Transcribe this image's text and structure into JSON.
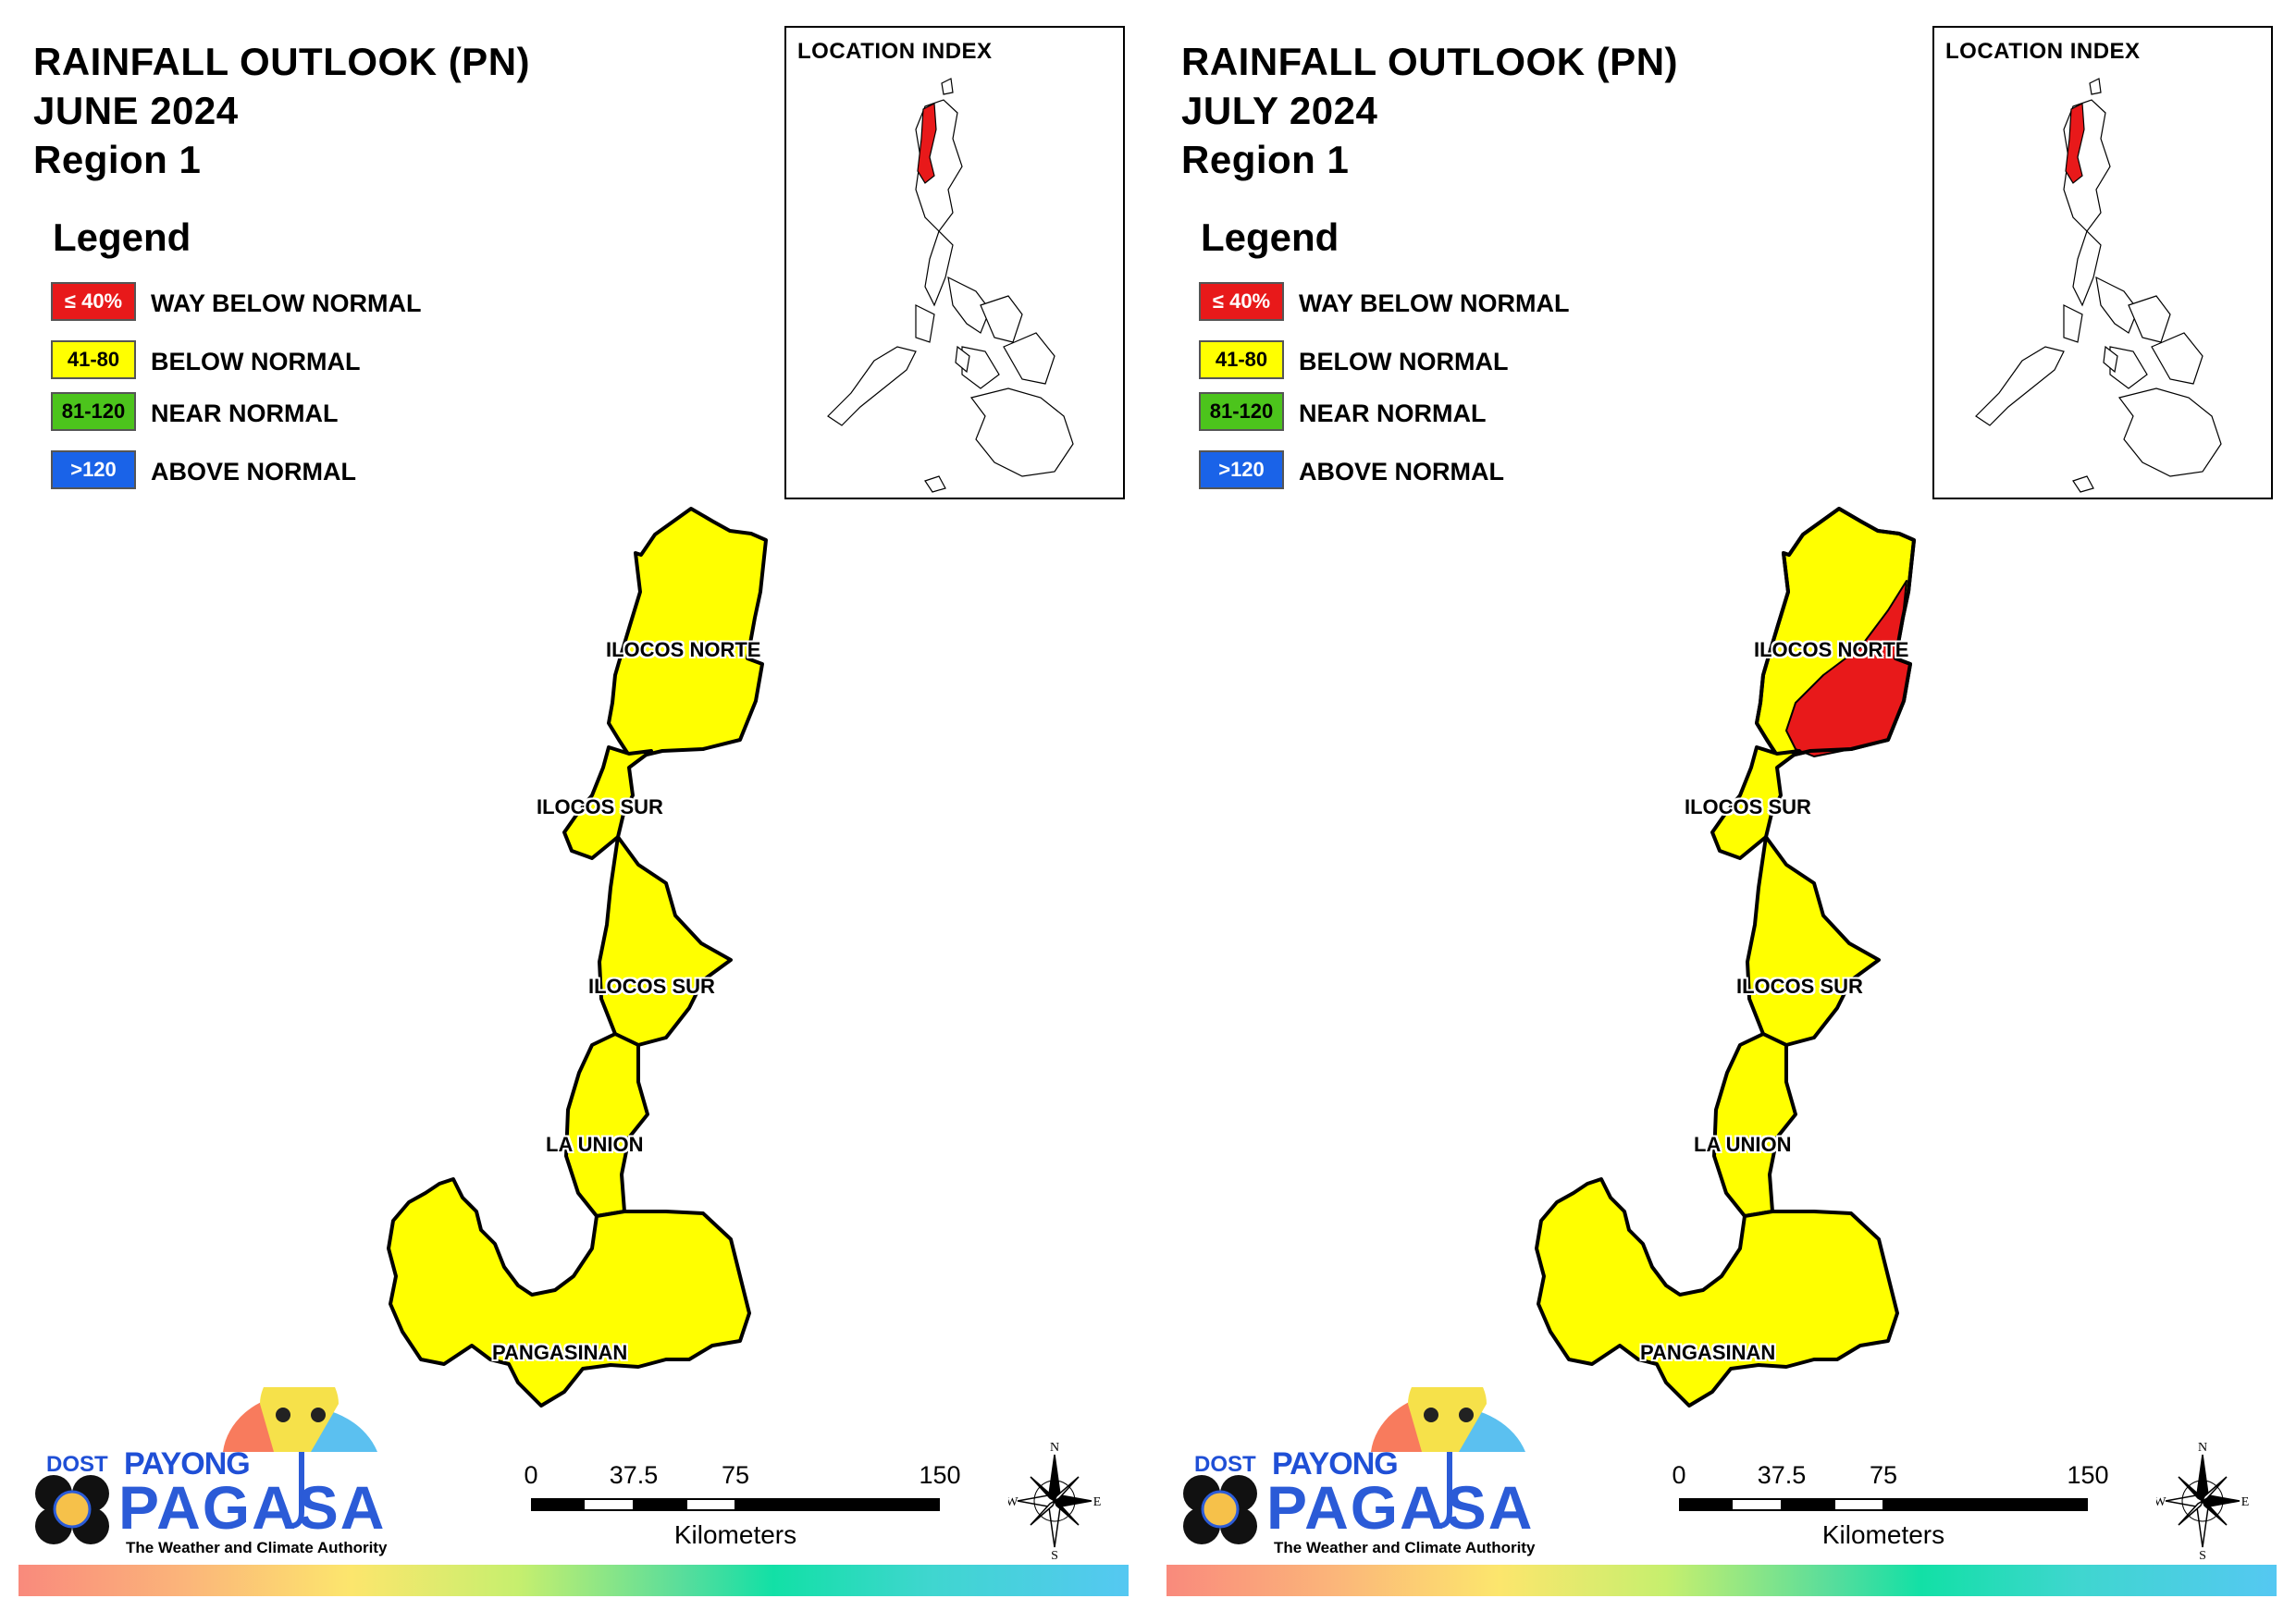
{
  "panels": [
    {
      "title_line1": "RAINFALL OUTLOOK (PN)",
      "title_line2": "JUNE 2024",
      "title_line3": "Region 1",
      "legend_title": "Legend",
      "location_index_title": "LOCATION INDEX",
      "provinces": [
        "ILOCOS NORTE",
        "ILOCOS SUR",
        "ILOCOS SUR",
        "LA UNION",
        "PANGASINAN"
      ],
      "categories_shown": [
        "BELOW NORMAL"
      ]
    },
    {
      "title_line1": "RAINFALL OUTLOOK (PN)",
      "title_line2": "JULY 2024",
      "title_line3": "Region 1",
      "legend_title": "Legend",
      "location_index_title": "LOCATION INDEX",
      "provinces": [
        "ILOCOS NORTE",
        "ILOCOS SUR",
        "ILOCOS SUR",
        "LA UNION",
        "PANGASINAN"
      ],
      "categories_shown": [
        "BELOW NORMAL",
        "WAY BELOW NORMAL"
      ]
    }
  ],
  "legend": [
    {
      "code": "≤ 40%",
      "label": "WAY BELOW NORMAL",
      "color": "#e8191a",
      "text_color": "#ffffff"
    },
    {
      "code": "41-80",
      "label": "BELOW NORMAL",
      "color": "#ffff00",
      "text_color": "#000000"
    },
    {
      "code": "81-120",
      "label": "NEAR NORMAL",
      "color": "#4cc41c",
      "text_color": "#000000"
    },
    {
      "code": ">120",
      "label": "ABOVE NORMAL",
      "color": "#1a63e8",
      "text_color": "#ffffff"
    }
  ],
  "scale_bar": {
    "ticks": [
      "0",
      "37.5",
      "75",
      "150"
    ],
    "units": "Kilometers"
  },
  "compass": {
    "n": "N",
    "s": "S",
    "e": "E",
    "w": "W"
  },
  "branding": {
    "dost": "DOST",
    "payong": "PAYONG",
    "pagasa": "PAGASA",
    "tagline": "The Weather and Climate Authority"
  },
  "colors": {
    "below_normal": "#ffff00",
    "way_below_normal": "#e8191a",
    "highlight_region": "#e8191a"
  }
}
